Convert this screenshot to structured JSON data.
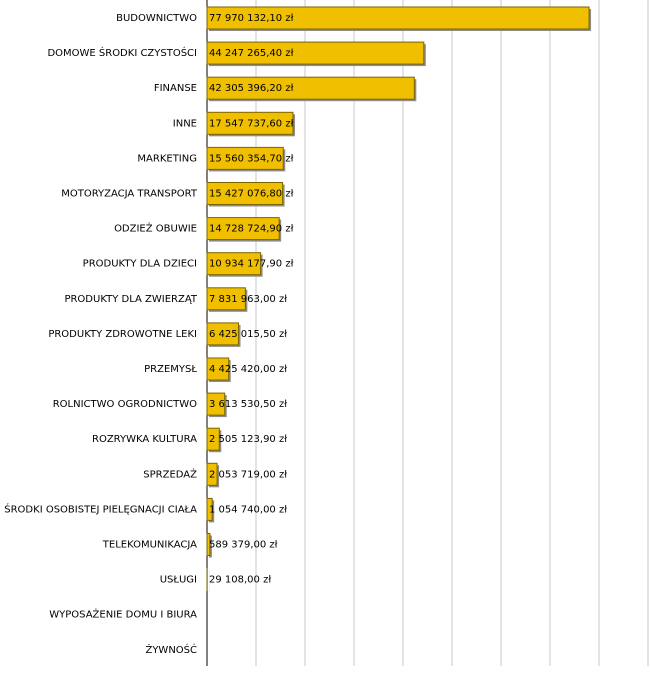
{
  "chart_data": {
    "type": "hbar",
    "categories": [
      "BUDOWNICTWO",
      "DOMOWE ŚRODKI CZYSTOŚCI",
      "FINANSE",
      "INNE",
      "MARKETING",
      "MOTORYZACJA TRANSPORT",
      "ODZIEŻ OBUWIE",
      "PRODUKTY DLA DZIECI",
      "PRODUKTY DLA ZWIERZĄT",
      "PRODUKTY ZDROWOTNE LEKI",
      "PRZEMYSŁ",
      "ROLNICTWO OGRODNICTWO",
      "ROZRYWKA KULTURA",
      "SPRZEDAŻ",
      "ŚRODKI OSOBISTEJ PIELĘGNACJI CIAŁA",
      "TELEKOMUNIKACJA",
      "USŁUGI",
      "WYPOSAŻENIE DOMU I BIURA",
      "ŻYWNOŚĆ"
    ],
    "values": [
      77970132.1,
      44247265.4,
      42305396.2,
      17547737.6,
      15560354.7,
      15427076.8,
      14728724.9,
      10934177.9,
      7831963.0,
      6425015.5,
      4425420.0,
      3613530.5,
      2505123.9,
      2053719.0,
      1054740.0,
      589379.0,
      29108.0,
      0,
      0
    ],
    "value_labels": [
      "77 970 132,10 zł",
      "44 247 265,40 zł",
      "42 305 396,20 zł",
      "17 547 737,60 zł",
      "15 560 354,70 zł",
      "15 427 076,80 zł",
      "14 728 724,90 zł",
      "10 934 177,90 zł",
      "7 831 963,00 zł",
      "6 425 015,50 zł",
      "4 425 420,00 zł",
      "3 613 530,50 zł",
      "2 505 123,90 zł",
      "2 053 719,00 zł",
      "1 054 740,00 zł",
      "589 379,00 zł",
      "29 108,00 zł",
      null,
      null
    ],
    "color": "#f0c000",
    "xlim": [
      0,
      90000000
    ],
    "xticks": [
      0,
      10000000,
      20000000,
      30000000,
      40000000,
      50000000,
      60000000,
      70000000,
      80000000,
      90000000
    ],
    "grid": true
  }
}
